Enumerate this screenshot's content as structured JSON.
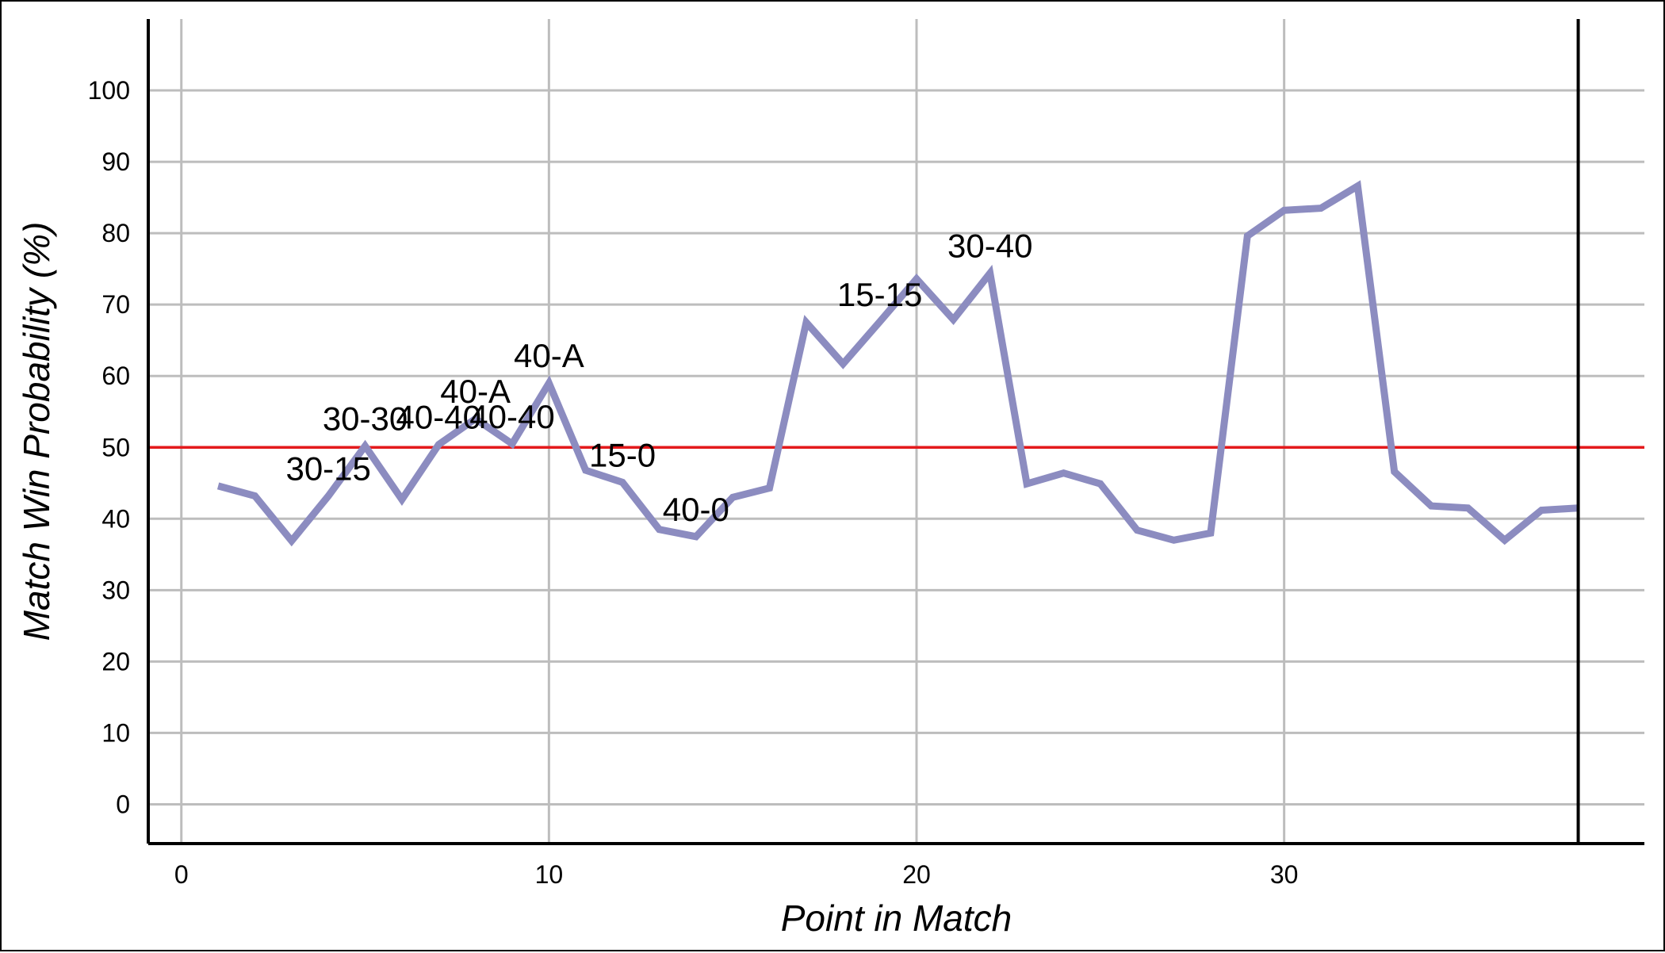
{
  "chart_data": {
    "type": "line",
    "title": "",
    "xlabel": "Point in Match",
    "ylabel": "Match Win Probability (%)",
    "xlim": [
      -0.9,
      39.8
    ],
    "ylim": [
      -5.5,
      110
    ],
    "x_ticks": [
      0,
      10,
      20,
      30
    ],
    "y_ticks": [
      0,
      10,
      20,
      30,
      40,
      50,
      60,
      70,
      80,
      90,
      100
    ],
    "grid": true,
    "legend": "none",
    "end_marker_x": 38,
    "reference_line": {
      "y": 50,
      "color": "#e41a1c"
    },
    "series": [
      {
        "color": "#8c8cc0",
        "x": [
          1,
          2,
          3,
          4,
          5,
          6,
          7,
          8,
          9,
          10,
          11,
          12,
          13,
          14,
          15,
          16,
          17,
          18,
          19,
          20,
          21,
          22,
          23,
          24,
          25,
          26,
          27,
          28,
          29,
          30,
          31,
          32,
          33,
          34,
          35,
          36,
          37,
          38
        ],
        "y": [
          44.6,
          43.2,
          36.9,
          43.2,
          50.2,
          42.7,
          50.4,
          54.0,
          50.5,
          59.0,
          46.8,
          45.1,
          38.5,
          37.5,
          43.0,
          44.3,
          67.5,
          61.7,
          67.6,
          73.6,
          67.9,
          74.4,
          44.9,
          46.4,
          44.9,
          38.4,
          37.0,
          38.0,
          79.6,
          83.2,
          83.5,
          86.6,
          46.6,
          41.8,
          41.5,
          37.0,
          41.2,
          41.5
        ]
      }
    ],
    "annotations": [
      {
        "x": 4,
        "y": 43.2,
        "text": "30-15"
      },
      {
        "x": 5,
        "y": 50.2,
        "text": "30-30"
      },
      {
        "x": 7,
        "y": 50.4,
        "text": "40-40"
      },
      {
        "x": 8,
        "y": 54.0,
        "text": "40-A"
      },
      {
        "x": 9,
        "y": 50.5,
        "text": "40-40"
      },
      {
        "x": 10,
        "y": 59.0,
        "text": "40-A"
      },
      {
        "x": 12,
        "y": 45.1,
        "text": "15-0"
      },
      {
        "x": 14,
        "y": 37.5,
        "text": "40-0"
      },
      {
        "x": 19,
        "y": 67.6,
        "text": "15-15"
      },
      {
        "x": 22,
        "y": 74.4,
        "text": "30-40"
      }
    ]
  }
}
